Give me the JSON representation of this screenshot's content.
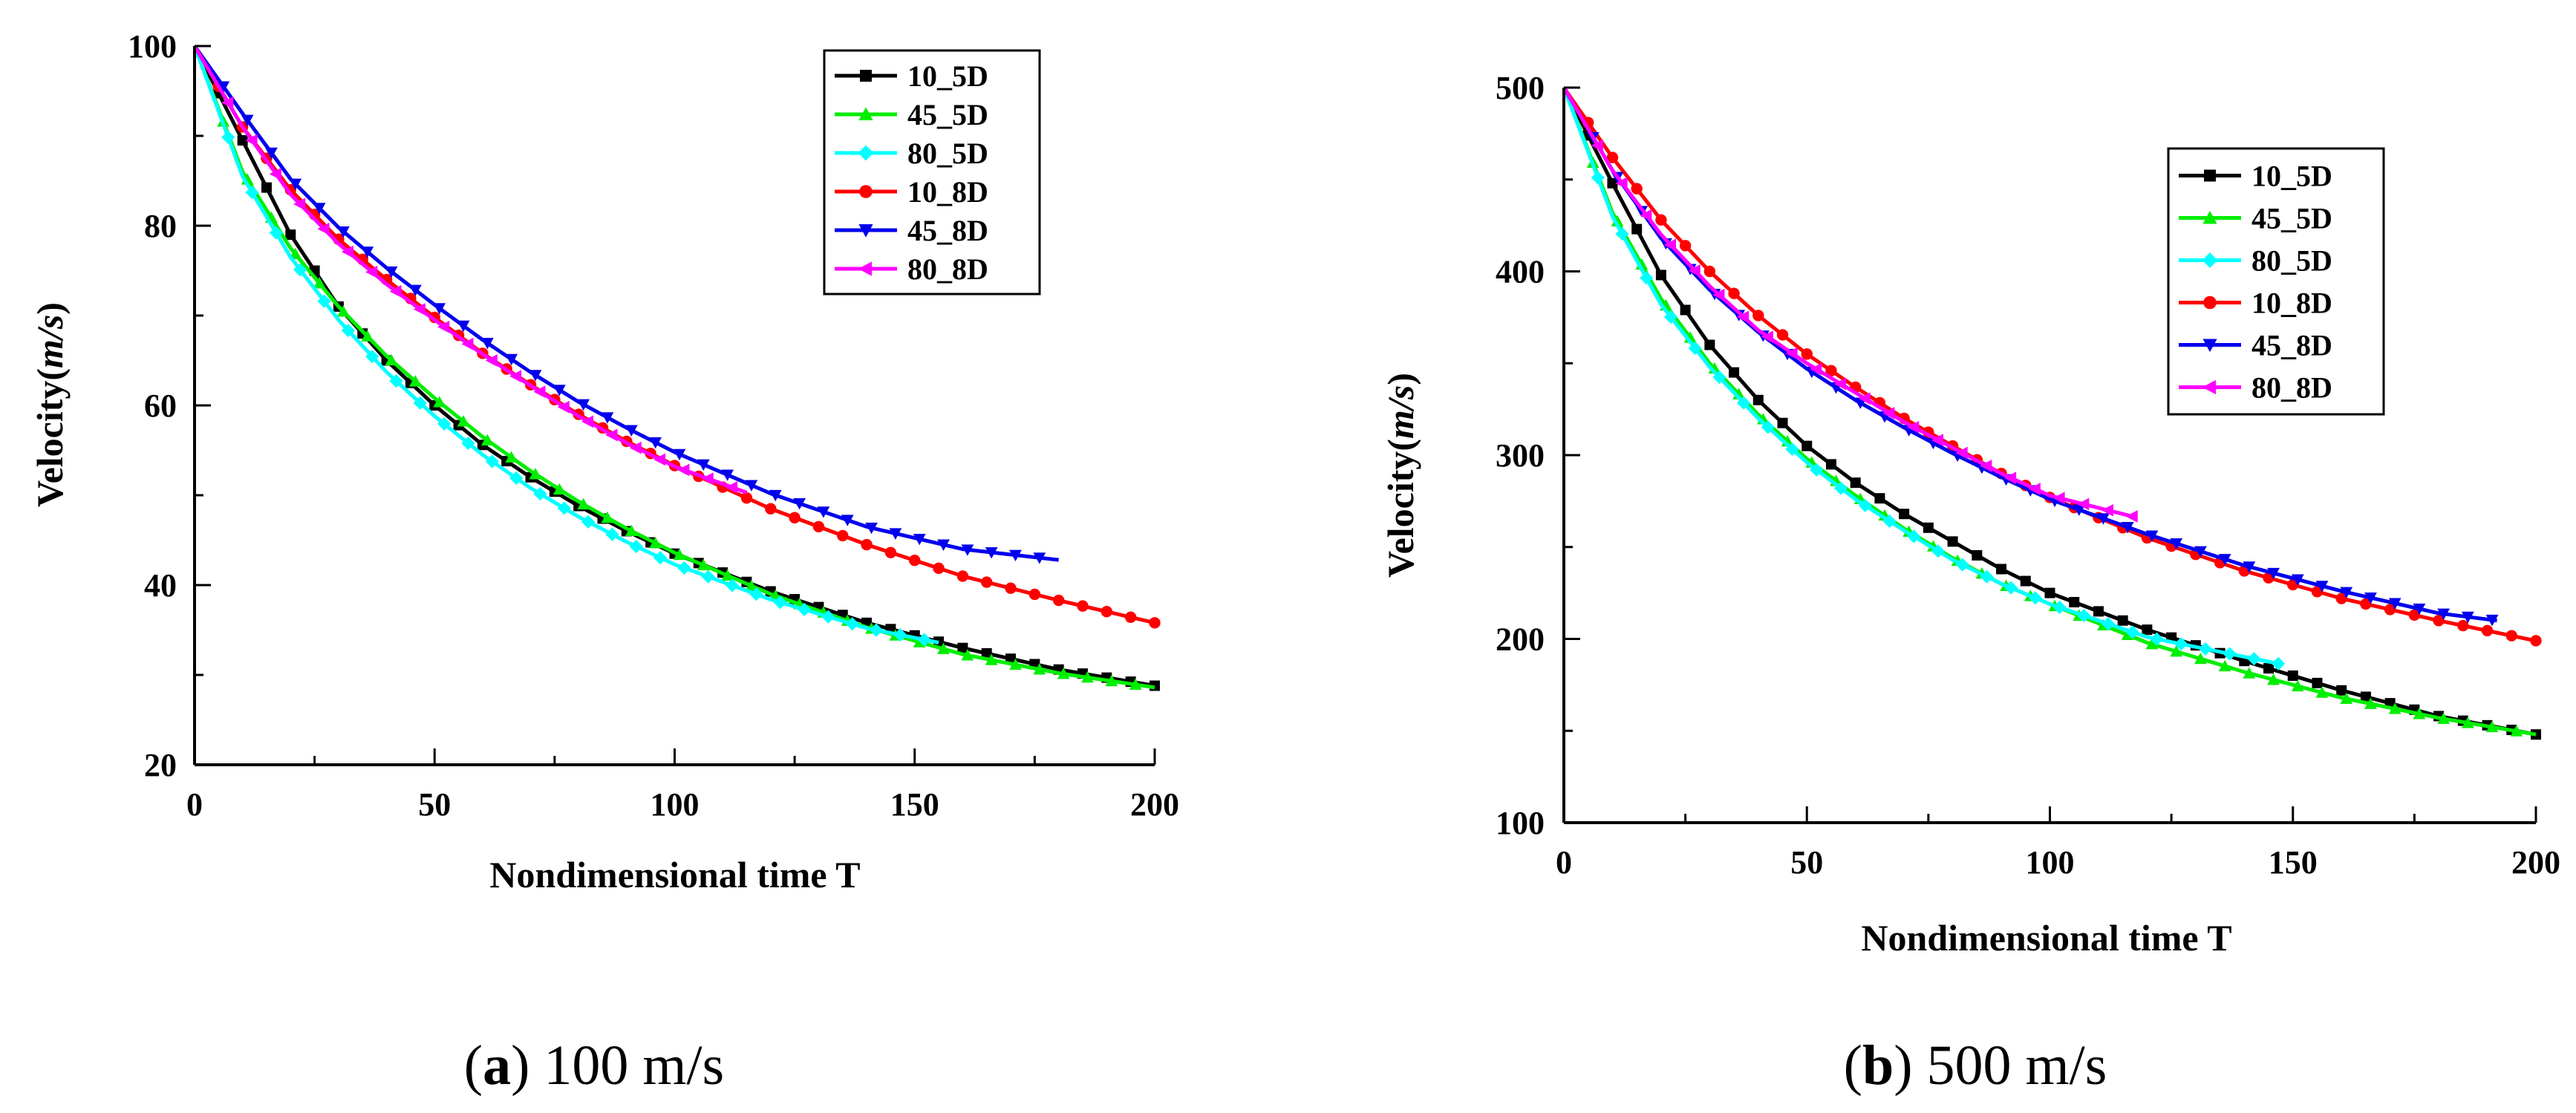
{
  "chart_data": [
    {
      "type": "line",
      "caption_prefix": "a",
      "caption_suffix": "100 m/s",
      "xlabel": "Nondimensional time T",
      "ylabel_prefix": "Velocity(",
      "ylabel_italic": "m/s",
      "ylabel_suffix": ")",
      "xlim": [
        0,
        200
      ],
      "ylim": [
        20,
        100
      ],
      "xticks": [
        0,
        50,
        100,
        150,
        200
      ],
      "yticks": [
        20,
        40,
        60,
        80,
        100
      ],
      "legend_position": "top-right",
      "series": [
        {
          "name": "10_5D",
          "color": "#000000",
          "marker": "square",
          "x": [
            0,
            10,
            20,
            30,
            40,
            50,
            60,
            70,
            80,
            90,
            100,
            120,
            140,
            160,
            180,
            200
          ],
          "y": [
            100,
            89.5,
            79,
            71,
            65,
            60,
            55.6,
            52,
            48.8,
            46,
            43.5,
            39.3,
            35.8,
            33,
            30.6,
            28.8
          ]
        },
        {
          "name": "45_5D",
          "color": "#00ee00",
          "marker": "triangle-up",
          "x": [
            0,
            10,
            20,
            30,
            40,
            50,
            60,
            70,
            80,
            90,
            100,
            120,
            140,
            160,
            180,
            200
          ],
          "y": [
            100,
            86,
            77.5,
            71,
            65.5,
            60.8,
            56.5,
            52.7,
            49.3,
            46.3,
            43.6,
            39,
            35.3,
            32.3,
            30.2,
            28.6
          ]
        },
        {
          "name": "80_5D",
          "color": "#00ffff",
          "marker": "diamond",
          "x": [
            0,
            10,
            20,
            30,
            40,
            50,
            60,
            70,
            80,
            90,
            100,
            120,
            140,
            155
          ],
          "y": [
            100,
            85.5,
            76.5,
            69.5,
            63.7,
            58.8,
            54.5,
            50.8,
            47.6,
            44.8,
            42.3,
            38.4,
            35.2,
            33.6
          ]
        },
        {
          "name": "10_8D",
          "color": "#ff0000",
          "marker": "circle",
          "x": [
            0,
            10,
            20,
            30,
            40,
            50,
            60,
            70,
            80,
            90,
            100,
            120,
            140,
            160,
            180,
            200
          ],
          "y": [
            100,
            91,
            84,
            78.5,
            74,
            69.8,
            65.8,
            62.3,
            59,
            56,
            53.3,
            48.5,
            44.5,
            41,
            38.3,
            35.8
          ]
        },
        {
          "name": "45_8D",
          "color": "#0000ee",
          "marker": "triangle-down",
          "x": [
            0,
            10,
            20,
            30,
            40,
            50,
            60,
            70,
            80,
            90,
            100,
            120,
            140,
            160,
            180
          ],
          "y": [
            100,
            92.5,
            85.2,
            79.8,
            75.3,
            71.2,
            67.3,
            63.7,
            60.4,
            57.5,
            54.8,
            50.2,
            46.5,
            44,
            42.8
          ]
        },
        {
          "name": "80_8D",
          "color": "#ff00ff",
          "marker": "triangle-left",
          "x": [
            0,
            10,
            20,
            30,
            40,
            50,
            60,
            70,
            80,
            90,
            100,
            115
          ],
          "y": [
            100,
            91,
            83.5,
            78,
            73.5,
            69.5,
            65.7,
            62.2,
            58.8,
            55.8,
            53.2,
            50.3
          ]
        }
      ]
    },
    {
      "type": "line",
      "caption_prefix": "b",
      "caption_suffix": "500 m/s",
      "xlabel": "Nondimensional time T",
      "ylabel_prefix": "Velocity(",
      "ylabel_italic": "m/s",
      "ylabel_suffix": ")",
      "xlim": [
        0,
        200
      ],
      "ylim": [
        100,
        500
      ],
      "xticks": [
        0,
        50,
        100,
        150,
        200
      ],
      "yticks": [
        100,
        200,
        300,
        400,
        500
      ],
      "legend_position": "top-right",
      "series": [
        {
          "name": "10_5D",
          "color": "#000000",
          "marker": "square",
          "x": [
            0,
            10,
            20,
            30,
            40,
            50,
            60,
            70,
            80,
            90,
            100,
            120,
            140,
            160,
            180,
            200
          ],
          "y": [
            500,
            448,
            398,
            360,
            330,
            305,
            285,
            268,
            253,
            238,
            225,
            205,
            188,
            172,
            158,
            148
          ]
        },
        {
          "name": "45_5D",
          "color": "#00ee00",
          "marker": "triangle-up",
          "x": [
            0,
            10,
            20,
            30,
            40,
            50,
            60,
            70,
            80,
            90,
            100,
            120,
            140,
            160,
            180,
            200
          ],
          "y": [
            500,
            432,
            385,
            350,
            322,
            298,
            278,
            260,
            244,
            230,
            219,
            198,
            182,
            168,
            157,
            148
          ]
        },
        {
          "name": "80_5D",
          "color": "#00ffff",
          "marker": "diamond",
          "x": [
            0,
            10,
            20,
            30,
            40,
            50,
            60,
            70,
            80,
            90,
            100,
            120,
            148
          ],
          "y": [
            500,
            430,
            382,
            348,
            320,
            296,
            276,
            259,
            243,
            230,
            219,
            201,
            186
          ]
        },
        {
          "name": "10_8D",
          "color": "#ff0000",
          "marker": "circle",
          "x": [
            0,
            10,
            20,
            30,
            40,
            50,
            60,
            70,
            80,
            90,
            100,
            120,
            140,
            160,
            180,
            200
          ],
          "y": [
            500,
            462,
            428,
            400,
            376,
            355,
            337,
            320,
            305,
            290,
            277,
            255,
            237,
            222,
            210,
            199
          ]
        },
        {
          "name": "45_8D",
          "color": "#0000ee",
          "marker": "triangle-down",
          "x": [
            0,
            10,
            20,
            30,
            40,
            50,
            60,
            70,
            80,
            90,
            100,
            120,
            140,
            160,
            180,
            192
          ],
          "y": [
            500,
            455,
            418,
            390,
            367,
            347,
            330,
            315,
            301,
            288,
            276,
            257,
            240,
            226,
            214,
            210
          ]
        },
        {
          "name": "80_8D",
          "color": "#ff00ff",
          "marker": "triangle-left",
          "x": [
            0,
            10,
            20,
            30,
            40,
            50,
            60,
            70,
            80,
            90,
            100,
            118
          ],
          "y": [
            500,
            455,
            420,
            392,
            368,
            350,
            334,
            318,
            304,
            290,
            278,
            266
          ]
        }
      ]
    }
  ]
}
